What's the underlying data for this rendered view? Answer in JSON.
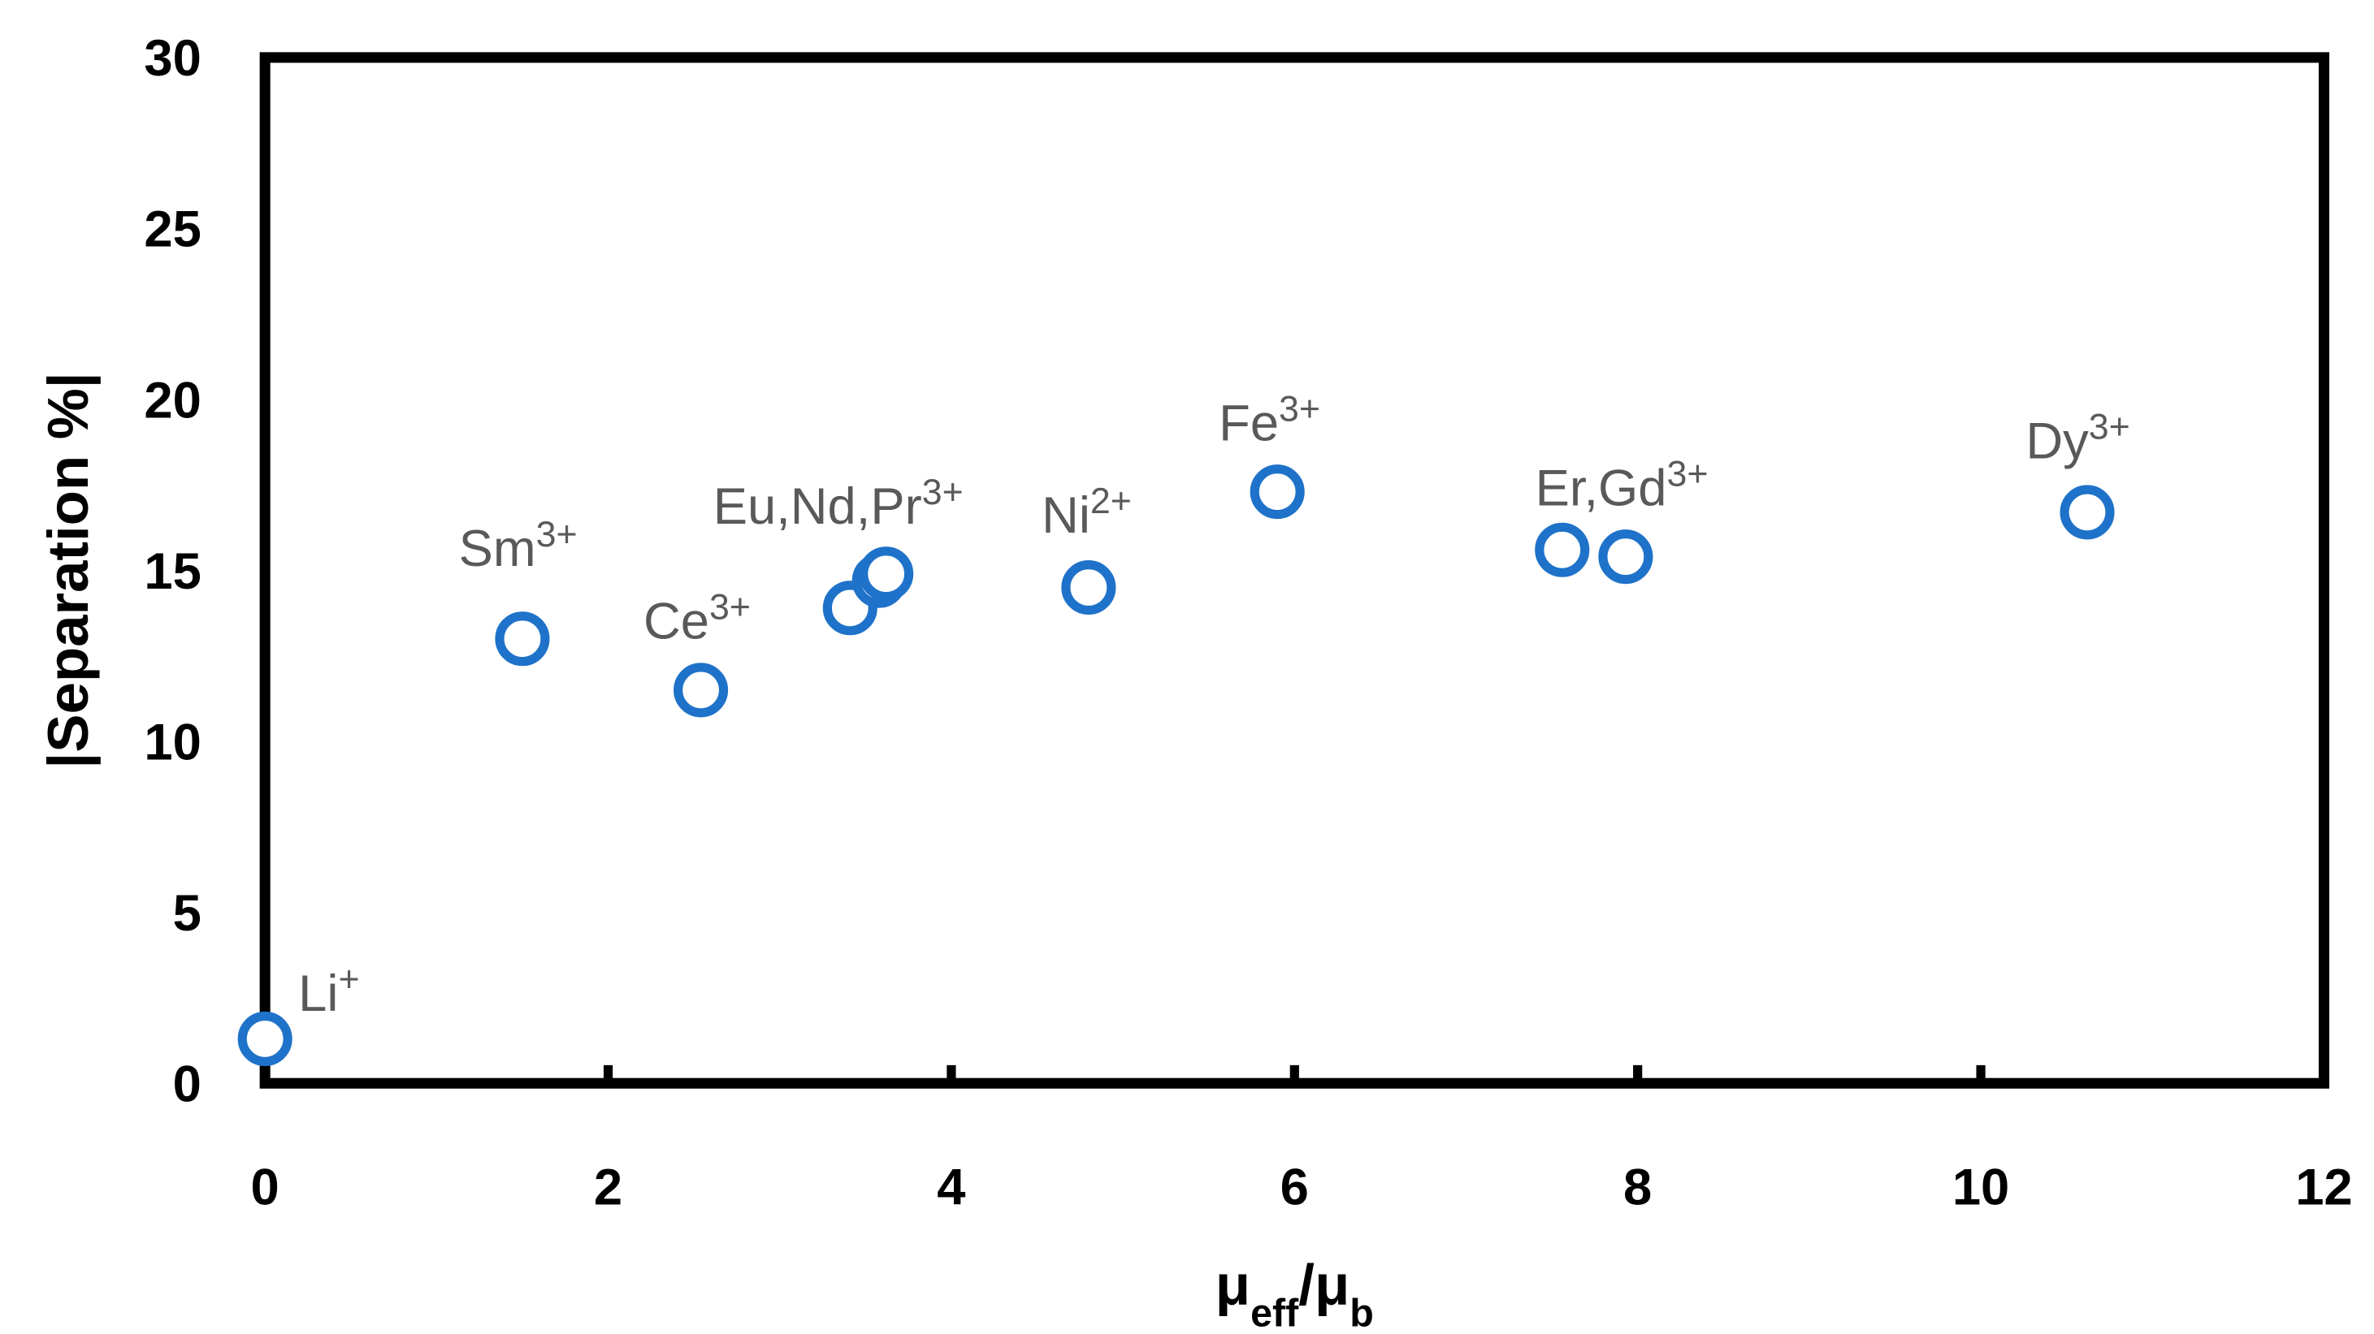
{
  "chart_data": {
    "type": "scatter",
    "xlabel": [
      {
        "text": "μ"
      },
      {
        "text": "eff",
        "sub": true
      },
      {
        "text": "/μ"
      },
      {
        "text": "b",
        "sub": true
      }
    ],
    "ylabel": "|Separation %|",
    "series": [
      {
        "color": "#1f72c9",
        "x": [
          0,
          1.5,
          2.54,
          3.41,
          3.58,
          3.62,
          4.8,
          5.9,
          7.56,
          7.93,
          10.62
        ],
        "values": [
          1.3,
          13.0,
          11.5,
          13.9,
          14.7,
          14.9,
          14.5,
          17.3,
          15.6,
          15.4,
          16.7
        ]
      }
    ],
    "annotations": [
      {
        "text": "Li",
        "sup": "+"
      },
      {
        "text": "Sm",
        "sup": "3+"
      },
      {
        "text": "Ce",
        "sup": "3+"
      },
      {
        "text": "Eu,Nd,Pr",
        "sup": "3+"
      },
      {
        "text": "Ni",
        "sup": "2+"
      },
      {
        "text": "Fe",
        "sup": "3+"
      },
      {
        "text": "Er,Gd",
        "sup": "3+"
      },
      {
        "text": "Dy",
        "sup": "3+"
      }
    ],
    "xlim": [
      0,
      12
    ],
    "xticks": [
      0,
      2,
      4,
      6,
      8,
      10,
      12
    ],
    "ylim": [
      0,
      30
    ],
    "yticks": [
      0,
      5,
      10,
      15,
      20,
      25,
      30
    ],
    "grid": false
  }
}
